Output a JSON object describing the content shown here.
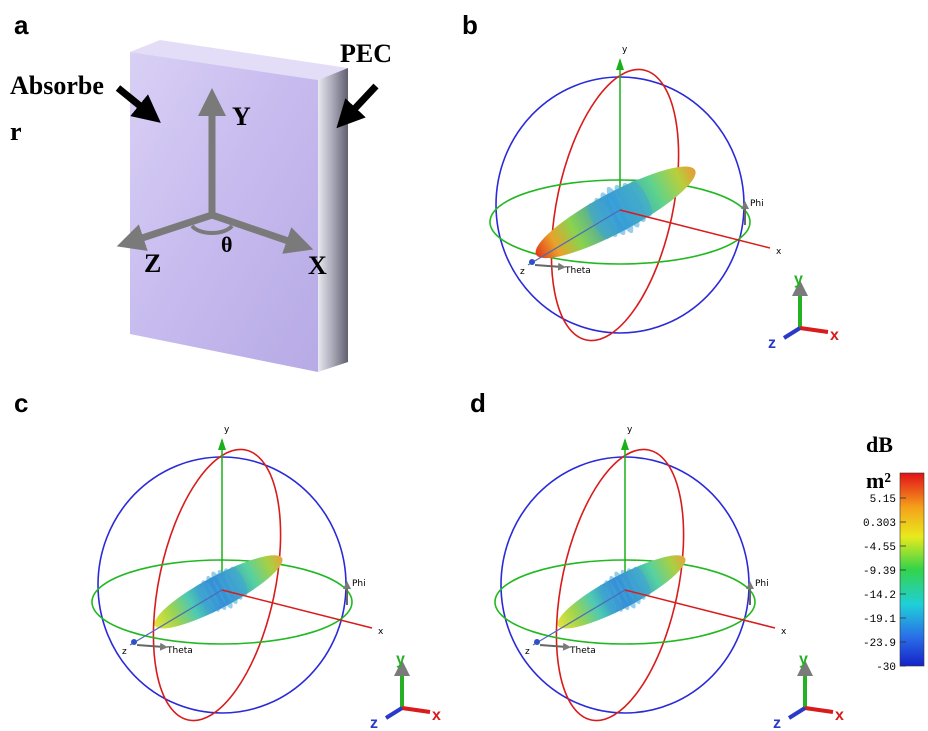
{
  "panels": [
    {
      "label": "a",
      "absorber": [
        "Absorbe",
        "r"
      ],
      "pec": "PEC",
      "axes": {
        "y": "Y",
        "z": "Z",
        "x": "X",
        "angle": "θ"
      }
    },
    {
      "label": "b",
      "axes": {
        "y": "y",
        "x": "x",
        "z": "z"
      },
      "phi": "Phi",
      "theta": "Theta",
      "triad": {
        "y": "y",
        "z": "z",
        "x": "x"
      }
    },
    {
      "label": "c",
      "axes": {
        "y": "y",
        "x": "x",
        "z": "z"
      },
      "phi": "Phi",
      "theta": "Theta",
      "triad": {
        "y": "y",
        "z": "z",
        "x": "x"
      }
    },
    {
      "label": "d",
      "axes": {
        "y": "y",
        "x": "x",
        "z": "z"
      },
      "phi": "Phi",
      "theta": "Theta",
      "triad": {
        "y": "y",
        "z": "z",
        "x": "x"
      }
    }
  ],
  "colorbar": {
    "unit": [
      "dB",
      "m²"
    ],
    "ticks": [
      "5.15",
      "0.303",
      "-4.55",
      "-9.39",
      "-14.2",
      "-19.1",
      "-23.9",
      "-30"
    ]
  }
}
